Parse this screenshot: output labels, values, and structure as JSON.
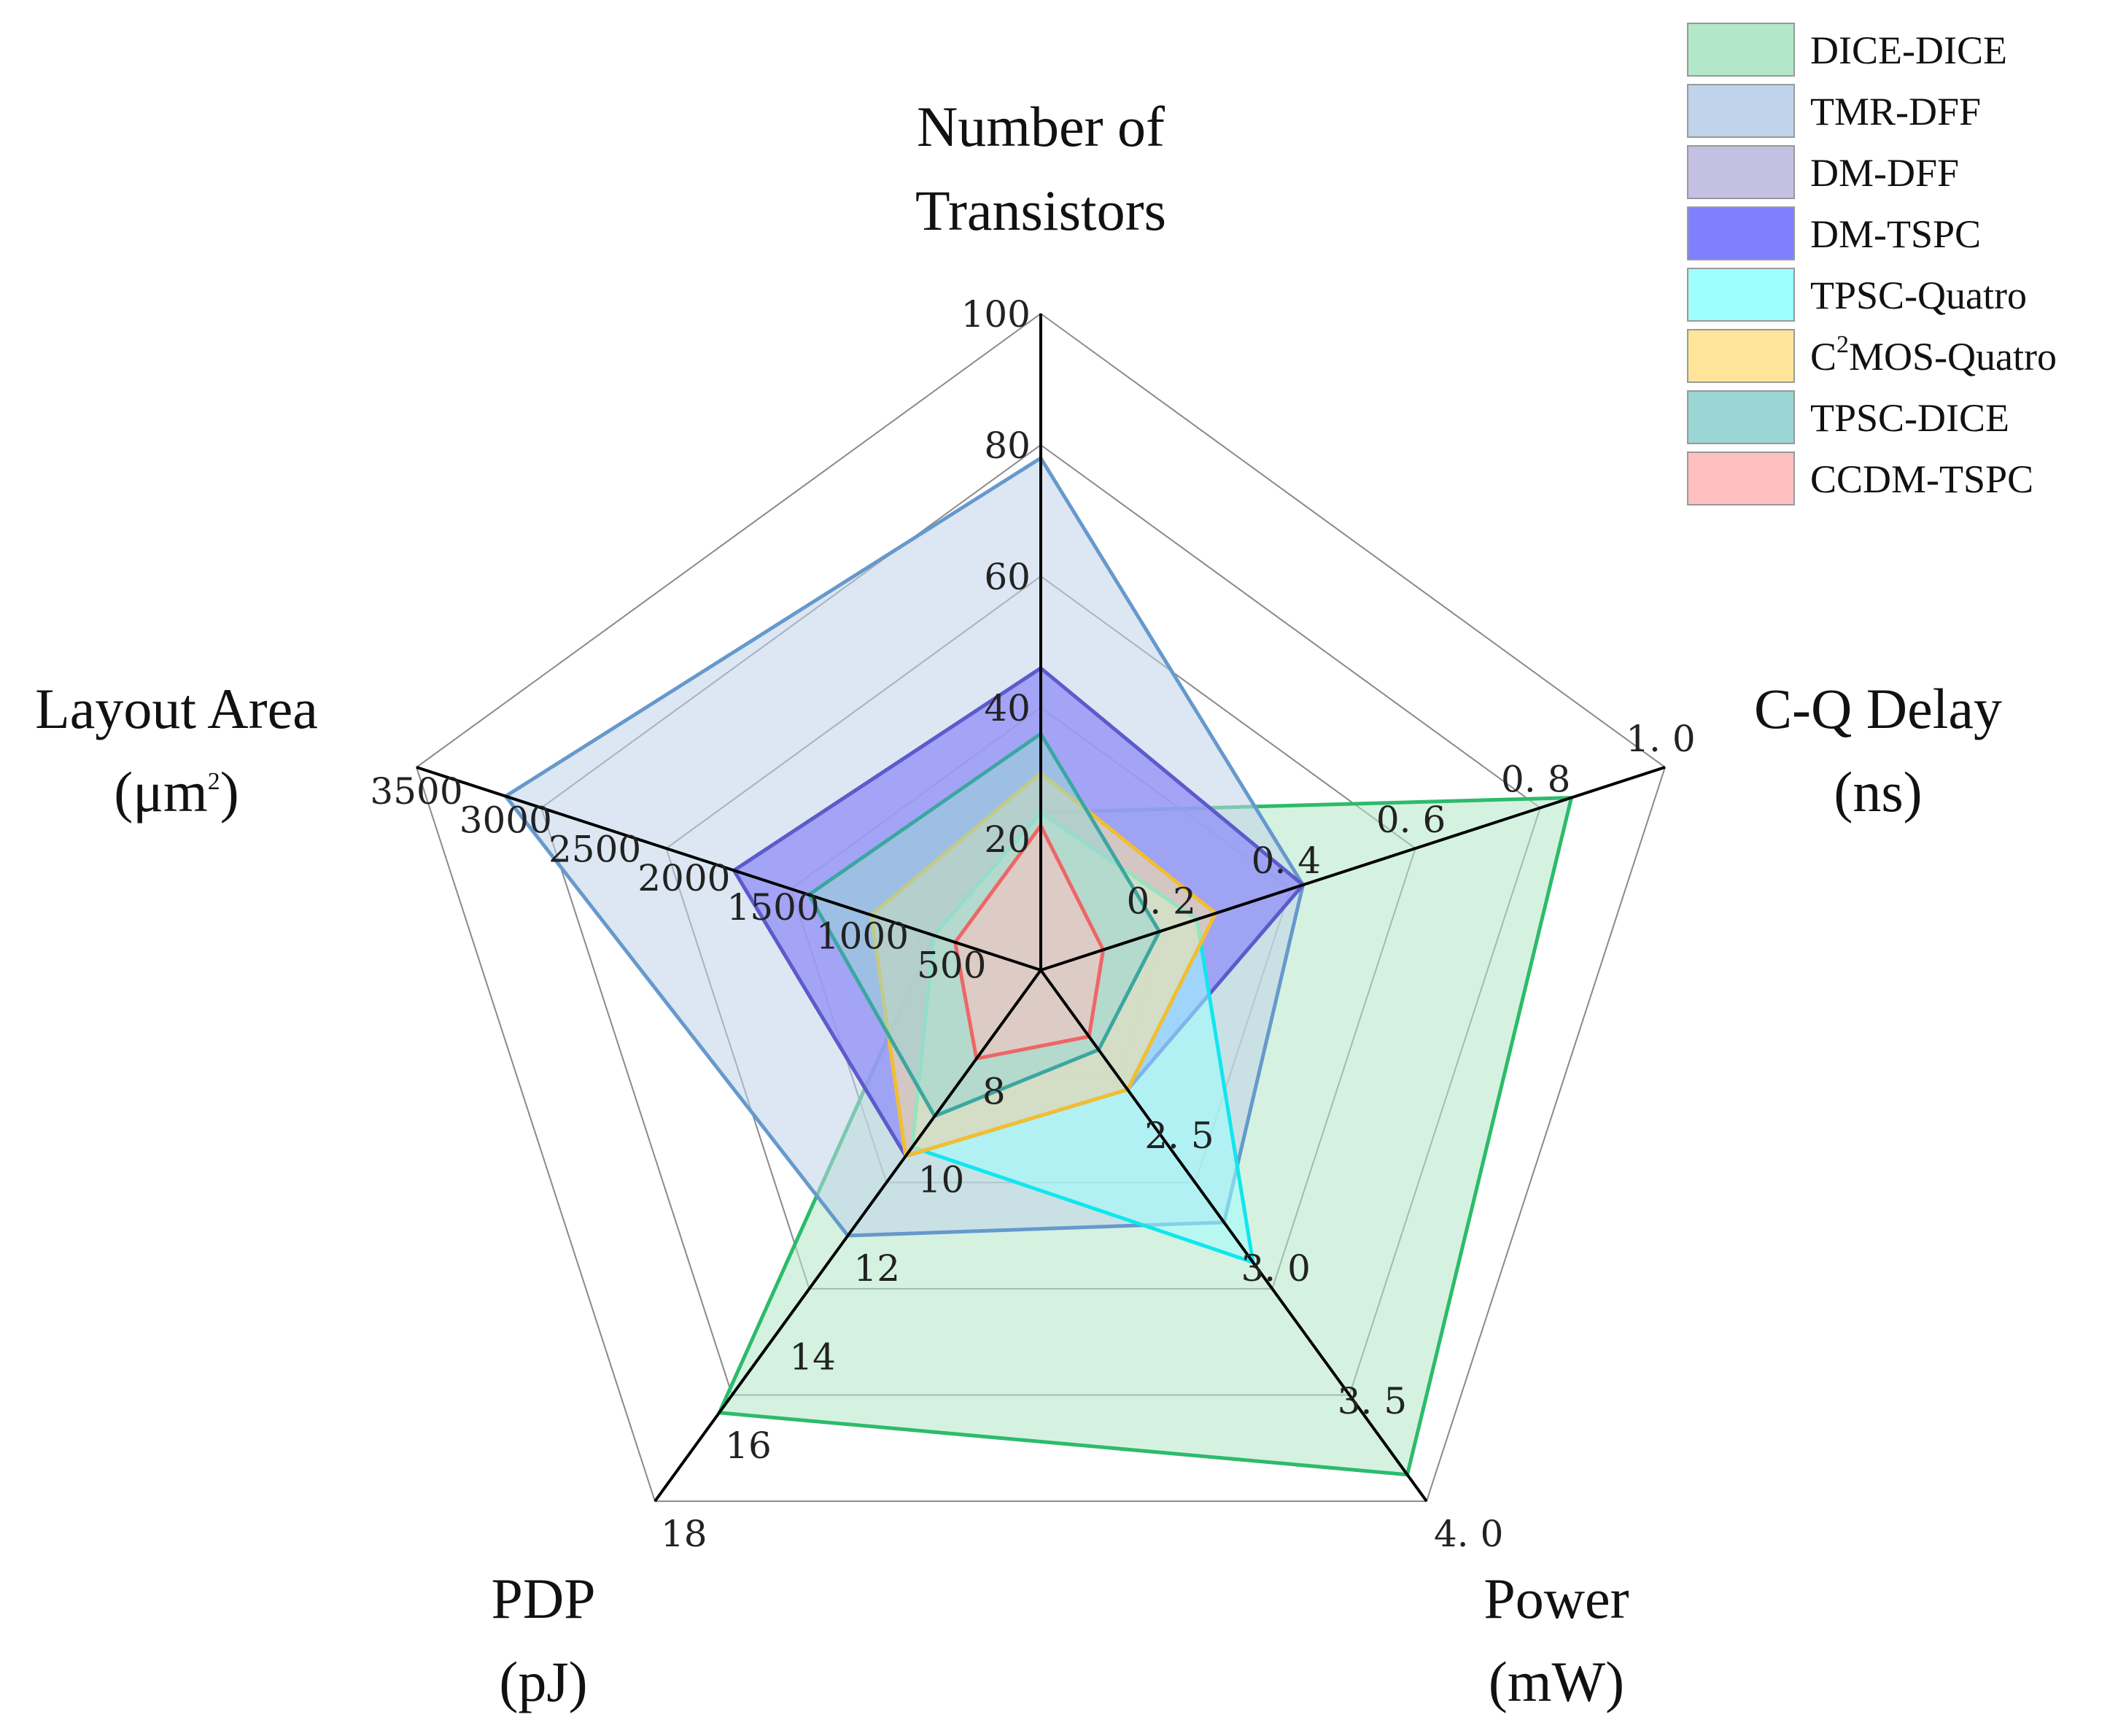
{
  "chart_data": {
    "type": "radar",
    "title": "",
    "axes": [
      {
        "key": "transistors",
        "label_lines": [
          "Number of",
          "Transistors"
        ],
        "min": 0,
        "max": 100,
        "ticks": [
          {
            "value": 20,
            "label": "20"
          },
          {
            "value": 40,
            "label": "40"
          },
          {
            "value": 60,
            "label": "60"
          },
          {
            "value": 80,
            "label": "80"
          },
          {
            "value": 100,
            "label": "100"
          }
        ]
      },
      {
        "key": "cq_delay",
        "label_lines": [
          "C-Q Delay",
          "(ns)"
        ],
        "min": 0,
        "max": 1.0,
        "ticks": [
          {
            "value": 0.2,
            "label": "0. 2"
          },
          {
            "value": 0.4,
            "label": "0. 4"
          },
          {
            "value": 0.6,
            "label": "0. 6"
          },
          {
            "value": 0.8,
            "label": "0. 8"
          },
          {
            "value": 1.0,
            "label": "1. 0"
          }
        ]
      },
      {
        "key": "power",
        "label_lines": [
          "Power",
          "(mW)"
        ],
        "min": 2.0,
        "max": 4.0,
        "ticks": [
          {
            "value": 2.5,
            "label": "2. 5"
          },
          {
            "value": 3.0,
            "label": "3. 0"
          },
          {
            "value": 3.5,
            "label": "3. 5"
          },
          {
            "value": 4.0,
            "label": "4. 0"
          }
        ]
      },
      {
        "key": "pdp",
        "label_lines": [
          "PDP",
          "(pJ)"
        ],
        "min": 6,
        "max": 18,
        "ticks": [
          {
            "value": 8,
            "label": "8"
          },
          {
            "value": 10,
            "label": "10"
          },
          {
            "value": 12,
            "label": "12"
          },
          {
            "value": 14,
            "label": "14"
          },
          {
            "value": 16,
            "label": "16"
          },
          {
            "value": 18,
            "label": "18"
          }
        ]
      },
      {
        "key": "area",
        "label_lines": [
          "Layout Area",
          "(μm",
          "2",
          ")"
        ],
        "min": 0,
        "max": 3500,
        "ticks": [
          {
            "value": 500,
            "label": "500"
          },
          {
            "value": 1000,
            "label": "1000"
          },
          {
            "value": 1500,
            "label": "1500"
          },
          {
            "value": 2000,
            "label": "2000"
          },
          {
            "value": 2500,
            "label": "2500"
          },
          {
            "value": 3000,
            "label": "3000"
          },
          {
            "value": 3500,
            "label": "3500"
          }
        ]
      }
    ],
    "series": [
      {
        "name": "DICE-DICE",
        "legend_main": "DICE-DICE",
        "fill": "#b2e8c8",
        "stroke": "#2dbb6a",
        "values": [
          24,
          0.85,
          3.9,
          16.0,
          600
        ]
      },
      {
        "name": "TMR-DFF",
        "legend_main": "TMR-DFF",
        "fill": "#bfd4ea",
        "stroke": "#6699cc",
        "values": [
          78,
          0.42,
          2.95,
          12.0,
          3000
        ]
      },
      {
        "name": "DM-DFF",
        "legend_main": "DM-DFF",
        "fill": "#c3c0e3",
        "stroke": "#8c84c8",
        "values": [
          46,
          0.42,
          2.45,
          10.2,
          1720
        ]
      },
      {
        "name": "DM-TSPC",
        "legend_main": "DM-TSPC",
        "fill": "#8080ff",
        "stroke": "#5b5bcc",
        "values": [
          46,
          0.42,
          2.45,
          10.2,
          1720
        ]
      },
      {
        "name": "TPSC-Quatro",
        "legend_main": "TPSC-Quatro",
        "fill": "#9effff",
        "stroke": "#11e6ee",
        "values": [
          24,
          0.25,
          3.1,
          10.0,
          600
        ]
      },
      {
        "name": "C2MOS-Quatro",
        "legend_main": "C",
        "legend_sup": "2",
        "legend_rest": "MOS-Quatro",
        "fill": "#ffe49a",
        "stroke": "#f1be30",
        "values": [
          30,
          0.28,
          2.45,
          10.2,
          950
        ]
      },
      {
        "name": "TPSC-DICE",
        "legend_main": "TPSC-DICE",
        "fill": "#99d6d4",
        "stroke": "#3aa7a0",
        "values": [
          36,
          0.19,
          2.3,
          9.3,
          1300
        ]
      },
      {
        "name": "CCDM-TSPC",
        "legend_main": "CCDM-TSPC",
        "fill": "#ffbfbf",
        "stroke": "#ee6666",
        "values": [
          22,
          0.1,
          2.25,
          8.0,
          480
        ]
      }
    ],
    "legend_position": "top-right",
    "grid": true
  }
}
